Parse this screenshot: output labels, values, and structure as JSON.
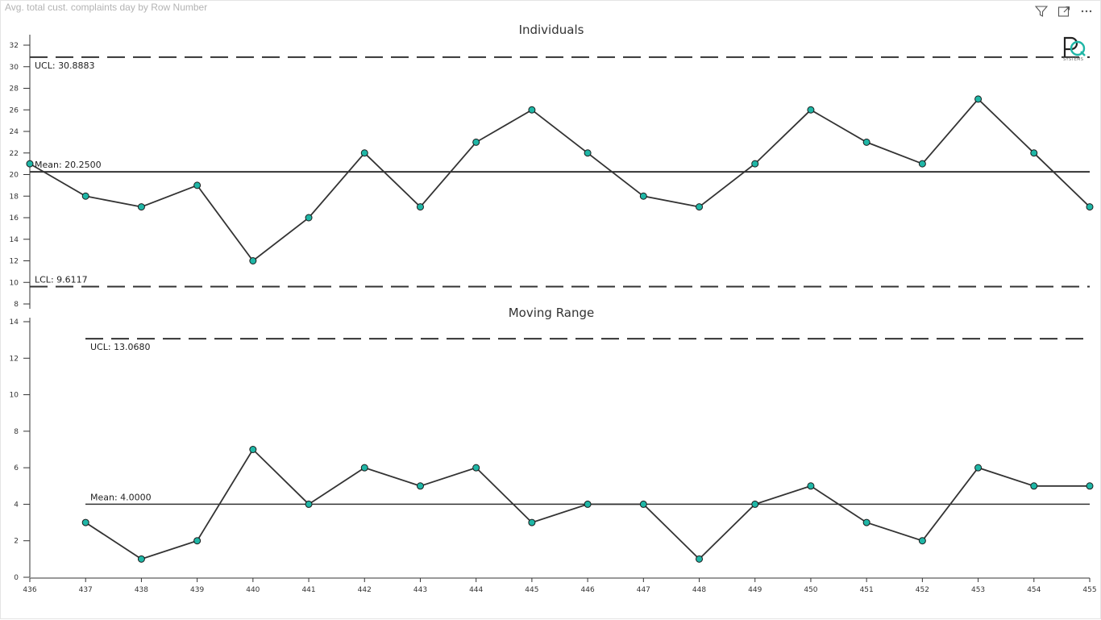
{
  "visual": {
    "title": "Avg. total cust. complaints day by Row Number"
  },
  "header_icons": [
    "filter-icon",
    "focus-mode-icon",
    "more-options-icon"
  ],
  "logo_text": "SYSTEMS",
  "colors": {
    "marker_fill": "#1fb6a6",
    "marker_stroke": "#1a1a1a",
    "series_line": "#333333",
    "limit_line": "#333333"
  },
  "chart_data": [
    {
      "type": "line",
      "title": "Individuals",
      "x": [
        436,
        437,
        438,
        439,
        440,
        441,
        442,
        443,
        444,
        445,
        446,
        447,
        448,
        449,
        450,
        451,
        452,
        453,
        454,
        455
      ],
      "values": [
        21,
        18,
        17,
        19,
        12,
        16,
        22,
        17,
        23,
        26,
        22,
        18,
        17,
        21,
        26,
        23,
        21,
        27,
        22,
        17
      ],
      "ylim": [
        8,
        32
      ],
      "yticks": [
        8,
        10,
        12,
        14,
        16,
        18,
        20,
        22,
        24,
        26,
        28,
        30,
        32
      ],
      "lines": {
        "ucl": {
          "value": 30.8883,
          "label": "UCL: 30.8883"
        },
        "mean": {
          "value": 20.25,
          "label": "Mean: 20.2500"
        },
        "lcl": {
          "value": 9.6117,
          "label": "LCL: 9.6117"
        }
      }
    },
    {
      "type": "line",
      "title": "Moving Range",
      "x": [
        437,
        438,
        439,
        440,
        441,
        442,
        443,
        444,
        445,
        446,
        447,
        448,
        449,
        450,
        451,
        452,
        453,
        454,
        455
      ],
      "values": [
        3,
        1,
        2,
        7,
        4,
        6,
        5,
        6,
        3,
        4,
        4,
        1,
        4,
        5,
        3,
        2,
        6,
        5,
        5
      ],
      "ylim": [
        0,
        14
      ],
      "yticks": [
        0,
        2,
        4,
        6,
        8,
        10,
        12,
        14
      ],
      "lines": {
        "ucl": {
          "value": 13.068,
          "label": "UCL: 13.0680"
        },
        "mean": {
          "value": 4.0,
          "label": "Mean: 4.0000"
        }
      },
      "xlabel_ticks": [
        "436",
        "437",
        "438",
        "439",
        "440",
        "441",
        "442",
        "443",
        "444",
        "445",
        "446",
        "447",
        "448",
        "449",
        "450",
        "451",
        "452",
        "453",
        "454",
        "455"
      ]
    }
  ]
}
